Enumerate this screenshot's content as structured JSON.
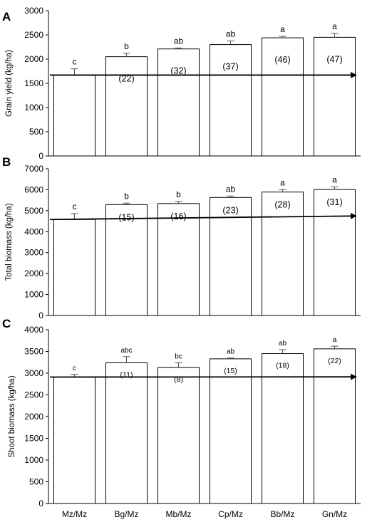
{
  "chart_data": [
    {
      "type": "bar",
      "panel_label": "A",
      "ylabel": "Grain yield (kg/ha)",
      "ylim": [
        0,
        3000
      ],
      "yticks": [
        0,
        500,
        1000,
        1500,
        2000,
        2500,
        3000
      ],
      "categories": [
        "Mz/Mz",
        "Bg/Mz",
        "Mb/Mz",
        "Cp/Mz",
        "Bb/Mz",
        "Gn/Mz"
      ],
      "values": [
        1670,
        2050,
        2210,
        2300,
        2440,
        2450
      ],
      "errors": [
        130,
        70,
        20,
        75,
        30,
        80
      ],
      "letters": [
        "c",
        "b",
        "ab",
        "ab",
        "a",
        "a"
      ],
      "percent_increase": [
        "",
        "(22)",
        "(32)",
        "(37)",
        "(46)",
        "(47)"
      ],
      "trend_arrow": true
    },
    {
      "type": "bar",
      "panel_label": "B",
      "ylabel": "Total biomass (kg/ha)",
      "ylim": [
        0,
        7000
      ],
      "yticks": [
        0,
        1000,
        2000,
        3000,
        4000,
        5000,
        6000,
        7000
      ],
      "categories": [
        "Mz/Mz",
        "Bg/Mz",
        "Mb/Mz",
        "Cp/Mz",
        "Bb/Mz",
        "Gn/Mz"
      ],
      "values": [
        4580,
        5290,
        5340,
        5630,
        5890,
        6010
      ],
      "errors": [
        280,
        70,
        100,
        70,
        110,
        130
      ],
      "letters": [
        "c",
        "b",
        "b",
        "ab",
        "a",
        "a"
      ],
      "percent_increase": [
        "",
        "(15)",
        "(16)",
        "(23)",
        "(28)",
        "(31)"
      ],
      "trend_arrow": true
    },
    {
      "type": "bar",
      "panel_label": "C",
      "ylabel": "Shoot biomass (kg/ha)",
      "ylim": [
        0,
        4000
      ],
      "yticks": [
        0,
        500,
        1000,
        1500,
        2000,
        2500,
        3000,
        3500,
        4000
      ],
      "categories": [
        "Mz/Mz",
        "Bg/Mz",
        "Mb/Mz",
        "Cp/Mz",
        "Bb/Mz",
        "Gn/Mz"
      ],
      "values": [
        2910,
        3240,
        3130,
        3330,
        3450,
        3560
      ],
      "errors": [
        60,
        140,
        110,
        20,
        90,
        60
      ],
      "letters": [
        "c",
        "abc",
        "bc",
        "ab",
        "ab",
        "a"
      ],
      "percent_increase": [
        "",
        "(11)",
        "(8)",
        "(15)",
        "(18)",
        "(22)"
      ],
      "trend_arrow": true
    }
  ]
}
